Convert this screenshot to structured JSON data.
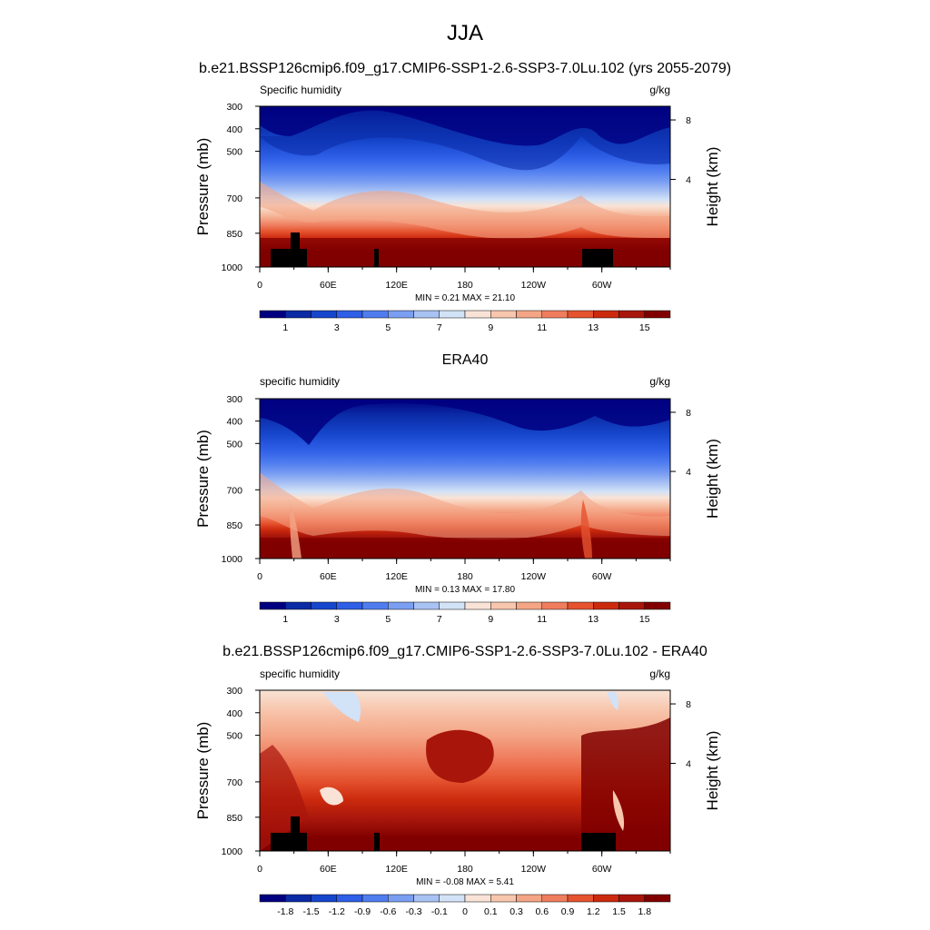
{
  "figure": {
    "title": "JJA",
    "subtitle": "b.e21.BSSP126cmip6.f09_g17.CMIP6-SSP1-2.6-SSP3-7.0Lu.102 (yrs 2055-2079)"
  },
  "axes_common": {
    "ylabel_left": "Pressure (mb)",
    "ylabel_right": "Height (km)",
    "pressure_ticks": [
      "300",
      "400",
      "500",
      "700",
      "850",
      "1000"
    ],
    "height_ticks": [
      "8",
      "4"
    ],
    "lon_ticks": [
      "0",
      "60E",
      "120E",
      "180",
      "120W",
      "60W"
    ]
  },
  "panel1": {
    "heading": "",
    "left_label": "Specific humidity",
    "units": "g/kg",
    "minmax": "MIN =   0.21  MAX =  21.10",
    "colorbar_labels": [
      "1",
      "3",
      "5",
      "7",
      "9",
      "11",
      "13",
      "15"
    ]
  },
  "panel2": {
    "heading": "ERA40",
    "left_label": "specific humidity",
    "units": "g/kg",
    "minmax": "MIN =   0.13  MAX =  17.80",
    "colorbar_labels": [
      "1",
      "3",
      "5",
      "7",
      "9",
      "11",
      "13",
      "15"
    ]
  },
  "panel3": {
    "heading": "b.e21.BSSP126cmip6.f09_g17.CMIP6-SSP1-2.6-SSP3-7.0Lu.102 - ERA40",
    "left_label": "specific humidity",
    "units": "g/kg",
    "minmax": "MIN =  -0.08  MAX =   5.41",
    "colorbar_labels": [
      "-1.8",
      "-1.5",
      "-1.2",
      "-0.9",
      "-0.6",
      "-0.3",
      "-0.1",
      "0",
      "0.1",
      "0.3",
      "0.6",
      "0.9",
      "1.2",
      "1.5",
      "1.8"
    ]
  },
  "colors": {
    "palette": [
      "#000080",
      "#0a2aa6",
      "#1646cc",
      "#2e5fe6",
      "#4f7df0",
      "#7a9ef2",
      "#a9c2f4",
      "#d2e2f7",
      "#f9e3d6",
      "#f7c6ad",
      "#f4a586",
      "#ef7d5e",
      "#e5532f",
      "#cc2a0e",
      "#a8160b",
      "#800000"
    ],
    "terrain": "#000000"
  },
  "chart_data": [
    {
      "type": "heatmap",
      "title": "Specific humidity",
      "units": "g/kg",
      "xlabel": "",
      "ylabel": "Pressure (mb)",
      "y2label": "Height (km)",
      "xlim": [
        0,
        360
      ],
      "ylim": [
        1000,
        300
      ],
      "contour_levels": [
        1,
        2,
        3,
        4,
        5,
        6,
        7,
        8,
        9,
        10,
        11,
        12,
        13,
        14,
        15
      ],
      "min": 0.21,
      "max": 21.1
    },
    {
      "type": "heatmap",
      "title": "ERA40",
      "units": "g/kg",
      "xlabel": "",
      "ylabel": "Pressure (mb)",
      "y2label": "Height (km)",
      "xlim": [
        0,
        360
      ],
      "ylim": [
        1000,
        300
      ],
      "contour_levels": [
        1,
        2,
        3,
        4,
        5,
        6,
        7,
        8,
        9,
        10,
        11,
        12,
        13,
        14,
        15
      ],
      "min": 0.13,
      "max": 17.8
    },
    {
      "type": "heatmap",
      "title": "b.e21.BSSP126cmip6.f09_g17.CMIP6-SSP1-2.6-SSP3-7.0Lu.102 - ERA40",
      "units": "g/kg",
      "xlabel": "",
      "ylabel": "Pressure (mb)",
      "y2label": "Height (km)",
      "xlim": [
        0,
        360
      ],
      "ylim": [
        1000,
        300
      ],
      "contour_levels": [
        -1.8,
        -1.5,
        -1.2,
        -0.9,
        -0.6,
        -0.3,
        -0.1,
        0,
        0.1,
        0.3,
        0.6,
        0.9,
        1.2,
        1.5,
        1.8
      ],
      "min": -0.08,
      "max": 5.41
    }
  ]
}
